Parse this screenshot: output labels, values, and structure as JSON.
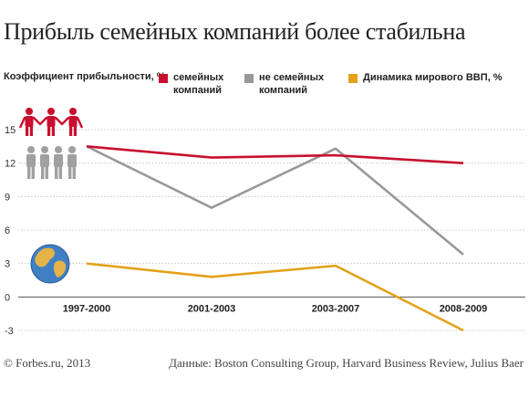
{
  "title": "Прибыль семейных компаний более стабильна",
  "chart_data": {
    "type": "line",
    "ylabel": "Коэффициент прибыльности, %",
    "categories": [
      "1997-2000",
      "2001-2003",
      "2003-2007",
      "2008-2009"
    ],
    "ylim": [
      -3,
      15
    ],
    "yticks": [
      -3,
      0,
      3,
      6,
      9,
      12,
      15
    ],
    "grid": "horizontal",
    "legend_position": "top",
    "series": [
      {
        "name": "семейных\nкомпаний",
        "color": "#c8102e",
        "values": [
          13.5,
          12.5,
          12.7,
          12.0
        ]
      },
      {
        "name": "не семейных\nкомпаний",
        "color": "#999999",
        "values": [
          13.5,
          8.0,
          13.3,
          3.8
        ]
      },
      {
        "name": "Динамика мирового ВВП, %",
        "color": "#e3a21a",
        "values": [
          3.0,
          1.8,
          2.8,
          -3.0
        ]
      }
    ]
  },
  "footer": {
    "left": "© Forbes.ru, 2013",
    "right": "Данные: Boston Consulting Group, Harvard Business Review, Julius Baer"
  },
  "icons": [
    "family-people-icon",
    "non-family-people-icon",
    "globe-icon"
  ]
}
